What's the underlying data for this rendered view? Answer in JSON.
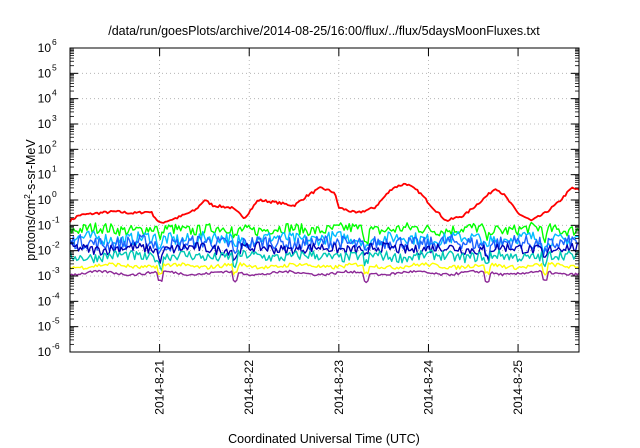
{
  "chart_data": {
    "type": "line",
    "title": "/data/run/goesPlots/archive/2014-08-25/16:00/flux/../flux/5daysMoonFluxes.txt",
    "xlabel": "Coordinated Universal Time (UTC)",
    "ylabel": "protons/cm2-s-sr-MeV",
    "ylabel_parts": {
      "a": "protons/cm",
      "sup": "2",
      "b": "-s-sr-MeV"
    },
    "yscale": "log",
    "ylim_exp": [
      -6,
      6
    ],
    "y_tick_base": "10",
    "y_tick_exponents": [
      "-6",
      "-5",
      "-4",
      "-3",
      "-2",
      "-1",
      "0",
      "1",
      "2",
      "3",
      "4",
      "5",
      "6"
    ],
    "xlim_days": [
      20.0,
      25.68
    ],
    "x_ticks": [
      {
        "day": 21,
        "label": "2014-8-21"
      },
      {
        "day": 22,
        "label": "2014-8-22"
      },
      {
        "day": 23,
        "label": "2014-8-23"
      },
      {
        "day": 24,
        "label": "2014-8-24"
      },
      {
        "day": 25,
        "label": "2014-8-25"
      }
    ],
    "grid": true,
    "series": [
      {
        "color": "#ff0000",
        "noise": 0.05,
        "points": [
          [
            20.0,
            0.15
          ],
          [
            20.1,
            0.25
          ],
          [
            20.3,
            0.3
          ],
          [
            20.5,
            0.35
          ],
          [
            20.7,
            0.3
          ],
          [
            20.9,
            0.35
          ],
          [
            21.0,
            0.12
          ],
          [
            21.2,
            0.2
          ],
          [
            21.4,
            0.4
          ],
          [
            21.5,
            1.0
          ],
          [
            21.6,
            0.6
          ],
          [
            21.8,
            0.5
          ],
          [
            21.95,
            0.2
          ],
          [
            22.1,
            1.0
          ],
          [
            22.3,
            0.8
          ],
          [
            22.5,
            0.6
          ],
          [
            22.65,
            1.5
          ],
          [
            22.8,
            3.0
          ],
          [
            22.95,
            2.0
          ],
          [
            23.0,
            0.5
          ],
          [
            23.2,
            0.3
          ],
          [
            23.4,
            0.5
          ],
          [
            23.6,
            3.0
          ],
          [
            23.75,
            4.5
          ],
          [
            23.9,
            2.0
          ],
          [
            24.05,
            0.5
          ],
          [
            24.2,
            0.15
          ],
          [
            24.4,
            0.25
          ],
          [
            24.6,
            1.0
          ],
          [
            24.75,
            3.0
          ],
          [
            24.85,
            1.5
          ],
          [
            25.0,
            0.3
          ],
          [
            25.15,
            0.15
          ],
          [
            25.3,
            0.3
          ],
          [
            25.45,
            0.8
          ],
          [
            25.6,
            3.0
          ],
          [
            25.68,
            2.5
          ]
        ]
      },
      {
        "color": "#00ff00",
        "base": 0.07,
        "noise": 0.22
      },
      {
        "color": "#00bcff",
        "base": 0.03,
        "noise": 0.25
      },
      {
        "color": "#1e64ff",
        "base": 0.02,
        "noise": 0.28
      },
      {
        "color": "#0000b4",
        "base": 0.012,
        "noise": 0.2
      },
      {
        "color": "#00c8b4",
        "base": 0.006,
        "noise": 0.2
      },
      {
        "color": "#ffff00",
        "base": 0.0025,
        "noise": 0.08
      },
      {
        "color": "#8c2896",
        "base": 0.0013,
        "noise": 0.05
      }
    ]
  }
}
